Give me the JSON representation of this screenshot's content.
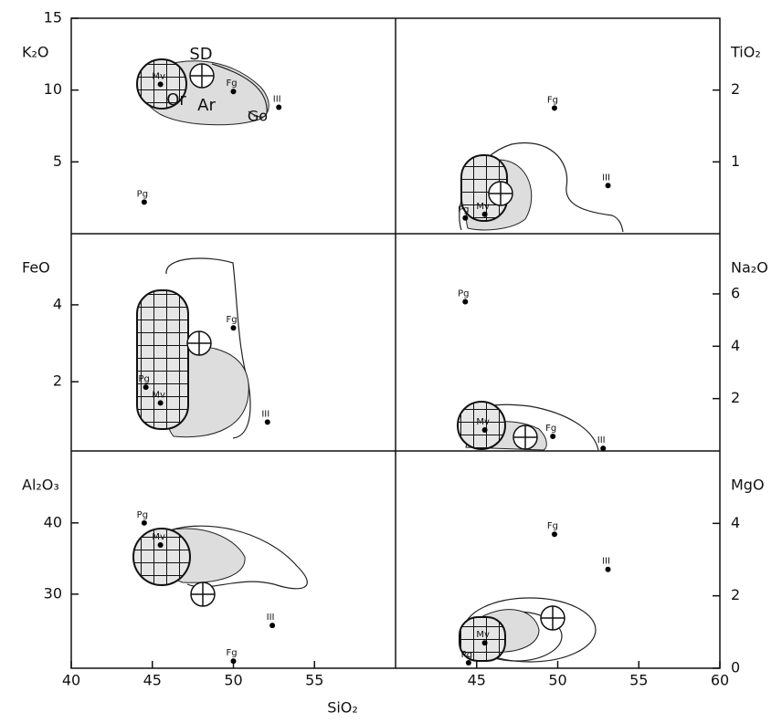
{
  "chart_data": [
    {
      "type": "scatter",
      "y_label": "K₂O",
      "xlim": [
        40,
        60
      ],
      "ylim": [
        0,
        15
      ],
      "yticks": [
        5,
        10,
        15
      ],
      "axis_side": "left",
      "series": [
        {
          "x": [
            44.5,
            45.5,
            50,
            52.8
          ],
          "values": [
            2.2,
            10.4,
            9.9,
            8.8
          ],
          "labels": [
            "Pg",
            "Mv",
            "Fg",
            "III"
          ],
          "color": "#000000"
        }
      ],
      "annotations": [
        "SD",
        "Or",
        "Ar",
        "Go"
      ]
    },
    {
      "type": "scatter",
      "y_label": "TiO₂",
      "xlim": [
        40,
        60
      ],
      "ylim": [
        0,
        3
      ],
      "yticks": [
        1,
        2
      ],
      "axis_side": "right",
      "series": [
        {
          "x": [
            44.3,
            45.5,
            49.8,
            53.1
          ],
          "values": [
            0.22,
            0.27,
            1.75,
            0.67
          ],
          "labels": [
            "Pg",
            "Mv",
            "Fg",
            "III"
          ],
          "color": "#000000"
        }
      ]
    },
    {
      "type": "scatter",
      "y_label": "FeO",
      "xlim": [
        40,
        60
      ],
      "ylim": [
        0.2,
        5.85
      ],
      "yticks": [
        2,
        4
      ],
      "axis_side": "left",
      "series": [
        {
          "x": [
            44.6,
            45.5,
            50,
            52.1
          ],
          "values": [
            1.86,
            1.45,
            3.4,
            0.95
          ],
          "labels": [
            "Pg",
            "Mv",
            "Fg",
            "III"
          ],
          "color": "#000000"
        }
      ]
    },
    {
      "type": "scatter",
      "y_label": "Na₂O",
      "xlim": [
        40,
        60
      ],
      "ylim": [
        0,
        8.3
      ],
      "yticks": [
        2,
        4,
        6
      ],
      "axis_side": "right",
      "series": [
        {
          "x": [
            44.3,
            45.5,
            49.7,
            52.8
          ],
          "values": [
            5.7,
            0.8,
            0.56,
            0.1
          ],
          "labels": [
            "Pg",
            "Mv",
            "Fg",
            "III"
          ],
          "color": "#000000"
        }
      ]
    },
    {
      "type": "scatter",
      "y_label": "Al₂O₃",
      "xlim": [
        40,
        60
      ],
      "ylim": [
        19.6,
        50.1
      ],
      "yticks": [
        30,
        40
      ],
      "axis_side": "left",
      "xticks": [
        40,
        45,
        50,
        55
      ],
      "series": [
        {
          "x": [
            44.5,
            45.5,
            50,
            52.4
          ],
          "values": [
            40,
            36.9,
            20.6,
            25.6
          ],
          "labels": [
            "Pg",
            "Mv",
            "Fg",
            "III"
          ],
          "color": "#000000"
        }
      ]
    },
    {
      "type": "scatter",
      "y_label": "MgO",
      "xlim": [
        40,
        60
      ],
      "ylim": [
        0,
        6
      ],
      "yticks": [
        0,
        2,
        4
      ],
      "axis_side": "right",
      "xticks": [
        45,
        50,
        55,
        60
      ],
      "x_label": "SiO₂",
      "series": [
        {
          "x": [
            44.5,
            45.5,
            49.8,
            53.1
          ],
          "values": [
            0.15,
            0.7,
            3.7,
            2.73
          ],
          "labels": [
            "Pg",
            "Mv",
            "Fg",
            "III"
          ],
          "color": "#000000"
        }
      ]
    }
  ]
}
